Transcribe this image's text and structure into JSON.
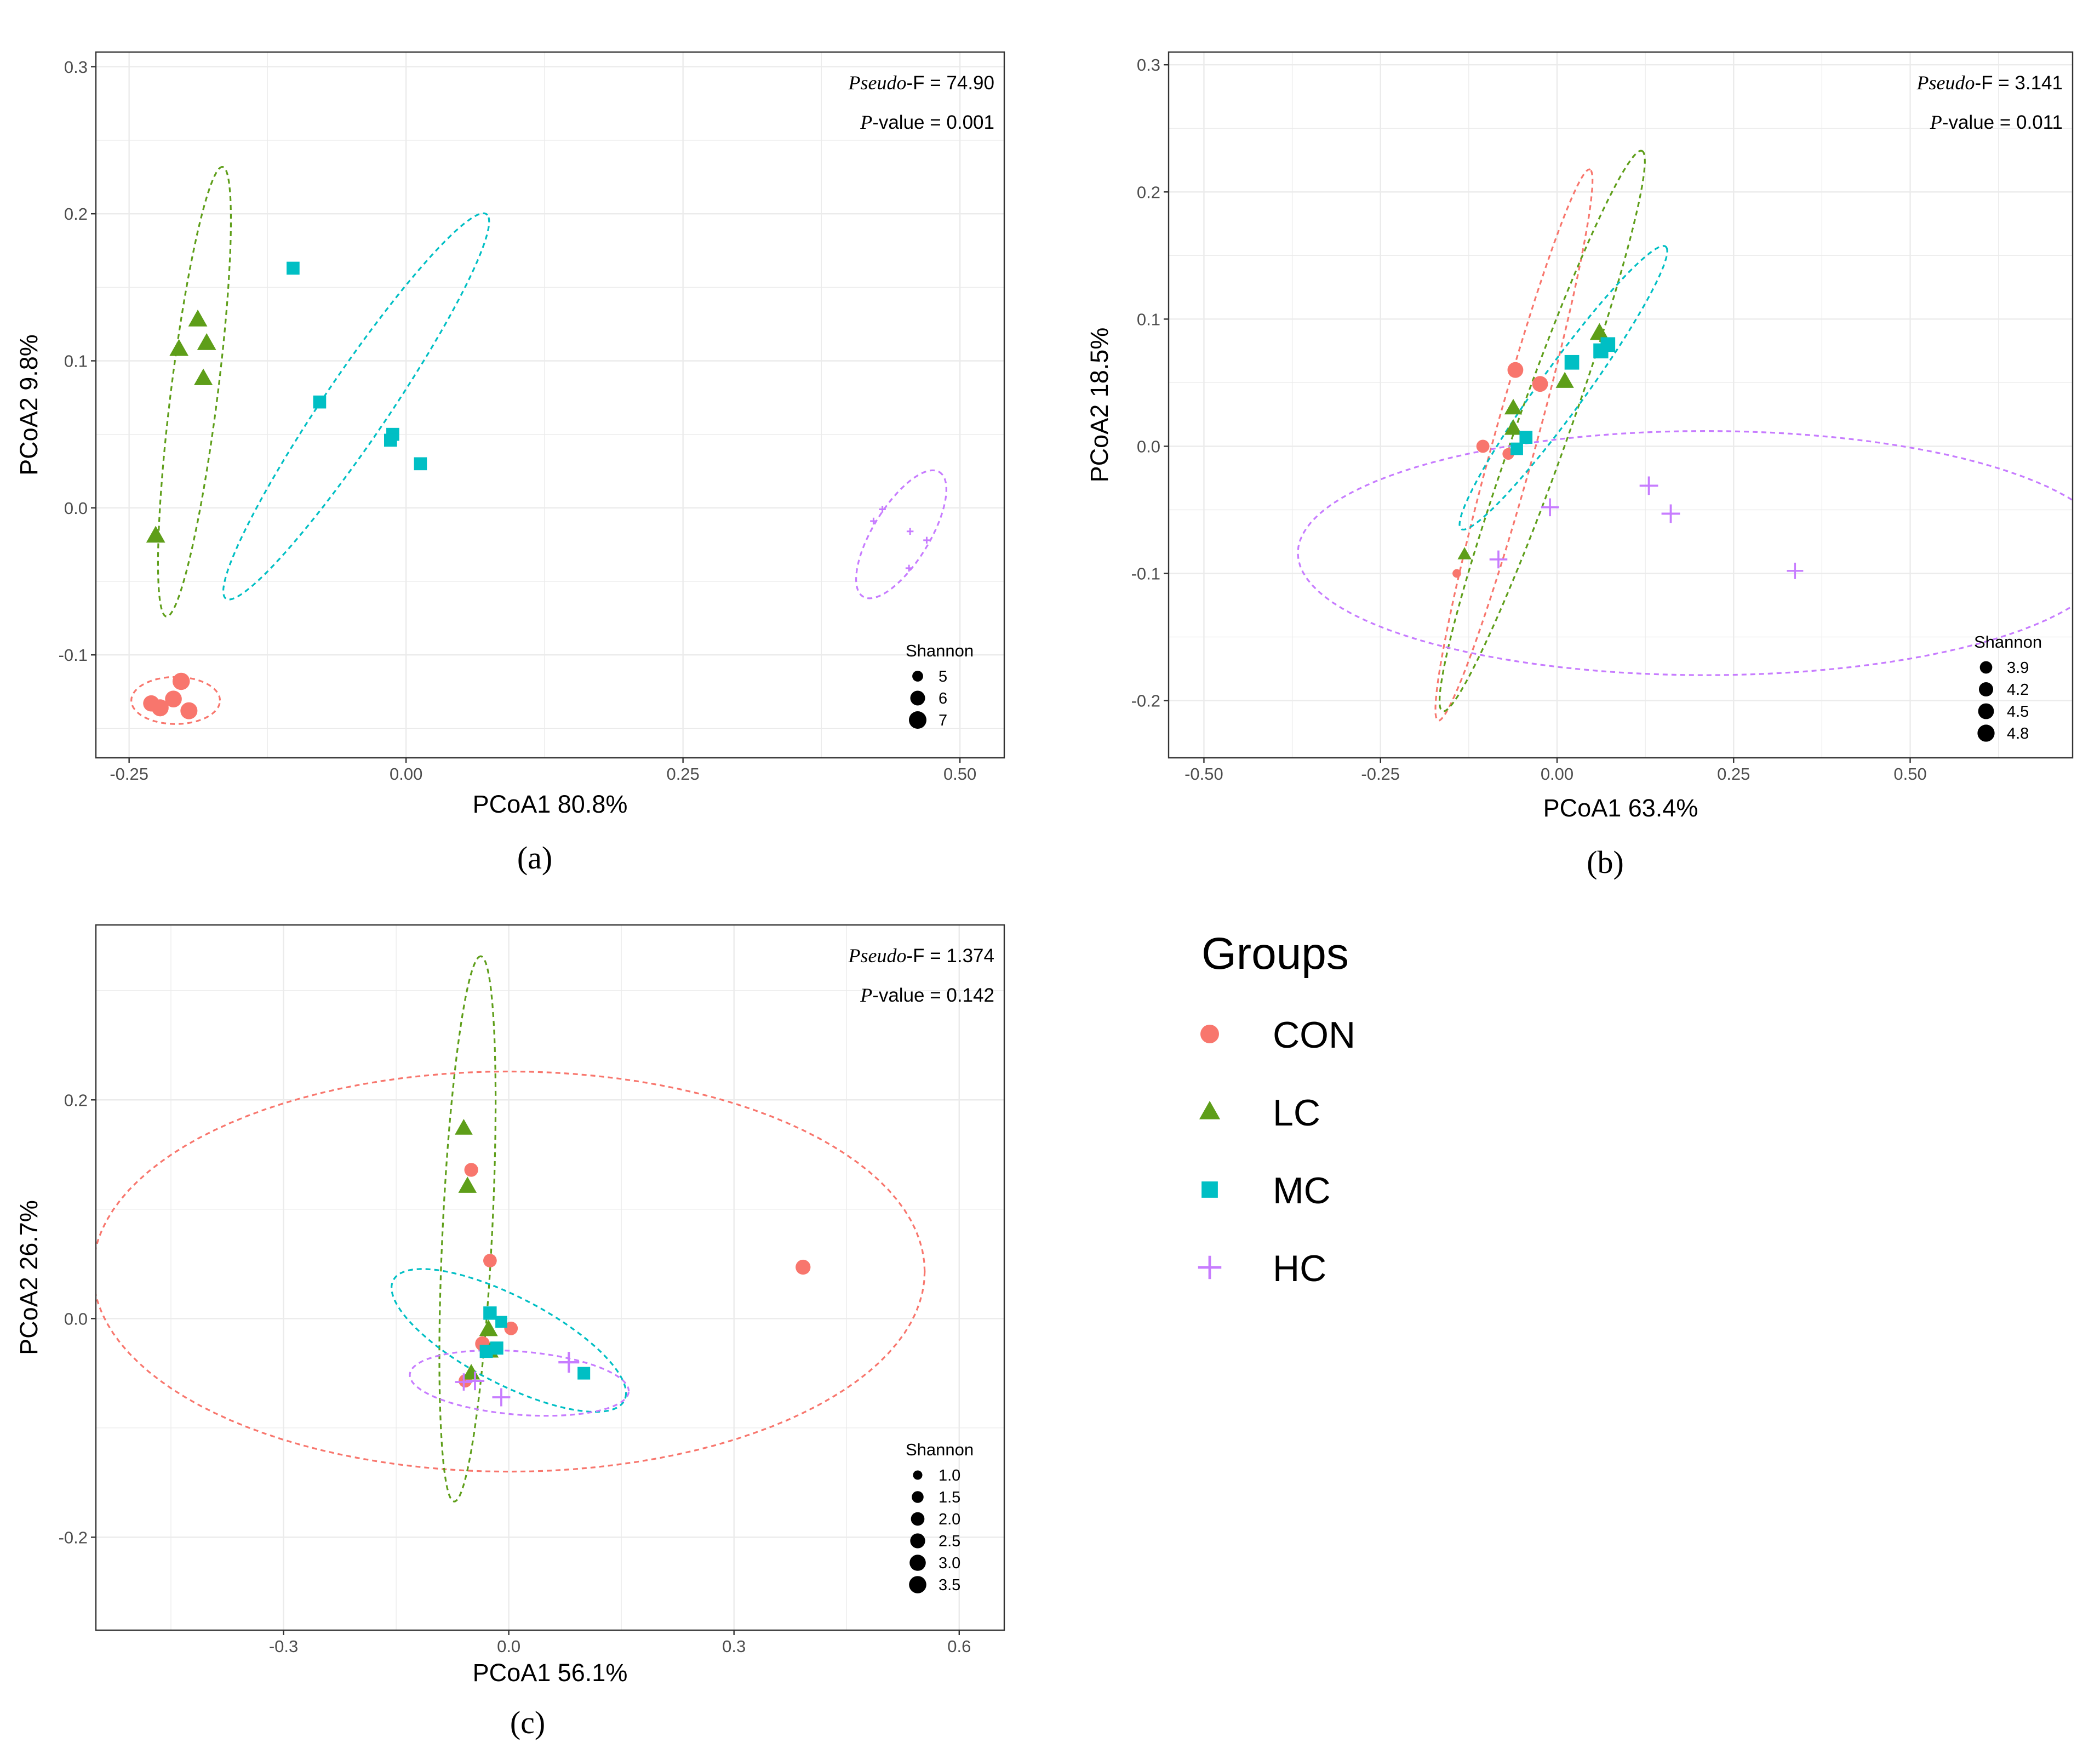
{
  "colors": {
    "CON": "#F8766D",
    "LC": "#5E9E19",
    "MC": "#00BFC4",
    "HC": "#C77CFF"
  },
  "legend": {
    "title": "Groups",
    "items": [
      {
        "key": "CON",
        "label": "CON",
        "shape": "circle"
      },
      {
        "key": "LC",
        "label": "LC",
        "shape": "triangle"
      },
      {
        "key": "MC",
        "label": "MC",
        "shape": "square"
      },
      {
        "key": "HC",
        "label": "HC",
        "shape": "plus"
      }
    ]
  },
  "chart_data": [
    {
      "type": "scatter",
      "panel_label": "(a)",
      "xlabel": "PCoA1  80.8%",
      "ylabel": "PCoA2  9.8%",
      "xlim": [
        -0.28,
        0.54
      ],
      "ylim": [
        -0.17,
        0.31
      ],
      "xticks": [
        -0.25,
        0.0,
        0.25,
        0.5
      ],
      "xtick_labels": [
        "-0.25",
        "0.00",
        "0.25",
        "0.50"
      ],
      "yticks": [
        -0.1,
        0.0,
        0.1,
        0.2,
        0.3
      ],
      "ytick_labels": [
        "-0.1",
        "0.0",
        "0.1",
        "0.2",
        "0.3"
      ],
      "stat_f_prefix": "Pseudo",
      "stat_f_suffix": "-F = 74.90",
      "stat_p_prefix": "P",
      "stat_p_suffix": "-value = 0.001",
      "grid": true,
      "legend_position": "bottom-right",
      "size_legend": {
        "title": "Shannon",
        "levels": [
          [
            "5",
            5
          ],
          [
            "6",
            6
          ],
          [
            "7",
            7
          ]
        ],
        "min": 4.5,
        "max": 7
      },
      "series": [
        {
          "group": "CON",
          "points": [
            [
              -0.23,
              -0.133,
              6.5
            ],
            [
              -0.222,
              -0.136,
              6.8
            ],
            [
              -0.21,
              -0.13,
              6.7
            ],
            [
              -0.203,
              -0.118,
              6.9
            ],
            [
              -0.196,
              -0.138,
              6.8
            ]
          ]
        },
        {
          "group": "LC",
          "points": [
            [
              -0.188,
              0.128,
              6.8
            ],
            [
              -0.205,
              0.108,
              6.8
            ],
            [
              -0.18,
              0.112,
              6.8
            ],
            [
              -0.183,
              0.088,
              6.7
            ],
            [
              -0.226,
              -0.019,
              6.8
            ]
          ]
        },
        {
          "group": "MC",
          "points": [
            [
              -0.102,
              0.163,
              6.0
            ],
            [
              -0.078,
              0.072,
              6.0
            ],
            [
              -0.012,
              0.05,
              6.0
            ],
            [
              -0.014,
              0.046,
              6.0
            ],
            [
              0.013,
              0.03,
              6.0
            ]
          ]
        },
        {
          "group": "HC",
          "points": [
            [
              0.43,
              -0.001,
              4.5
            ],
            [
              0.422,
              -0.009,
              4.5
            ],
            [
              0.455,
              -0.016,
              4.5
            ],
            [
              0.47,
              -0.022,
              4.5
            ],
            [
              0.454,
              -0.041,
              4.5
            ]
          ]
        }
      ],
      "ellipses": [
        {
          "group": "CON",
          "cx": -0.208,
          "cy": -0.131,
          "rx": 0.04,
          "ry": 0.016,
          "angle": 0
        },
        {
          "group": "LC",
          "cx": -0.191,
          "cy": 0.079,
          "rx": 0.155,
          "ry": 0.021,
          "angle": 80.5
        },
        {
          "group": "MC",
          "cx": -0.045,
          "cy": 0.069,
          "rx": 0.176,
          "ry": 0.026,
          "angle": 47.7
        },
        {
          "group": "HC",
          "cx": 0.447,
          "cy": -0.018,
          "rx": 0.055,
          "ry": 0.023,
          "angle": 47.7
        }
      ]
    },
    {
      "type": "scatter",
      "panel_label": "(b)",
      "xlabel": "PCoA1  63.4%",
      "ylabel": "PCoA2  18.5%",
      "xlim": [
        -0.55,
        0.73
      ],
      "ylim": [
        -0.245,
        0.31
      ],
      "xticks": [
        -0.5,
        -0.25,
        0.0,
        0.25,
        0.5
      ],
      "xtick_labels": [
        "-0.50",
        "-0.25",
        "0.00",
        "0.25",
        "0.50"
      ],
      "yticks": [
        -0.2,
        -0.1,
        0.0,
        0.1,
        0.2,
        0.3
      ],
      "ytick_labels": [
        "-0.2",
        "-0.1",
        "0.0",
        "0.1",
        "0.2",
        "0.3"
      ],
      "stat_f_prefix": "Pseudo",
      "stat_f_suffix": "-F = 3.141",
      "stat_p_prefix": "P",
      "stat_p_suffix": "-value = 0.011",
      "grid": true,
      "legend_position": "bottom-right",
      "size_legend": {
        "title": "Shannon",
        "levels": [
          [
            "3.9",
            3.9
          ],
          [
            "4.2",
            4.2
          ],
          [
            "4.5",
            4.5
          ],
          [
            "4.8",
            4.8
          ]
        ],
        "min": 3.4,
        "max": 4.9
      },
      "series": [
        {
          "group": "CON",
          "points": [
            [
              -0.059,
              0.06,
              4.5
            ],
            [
              -0.024,
              0.049,
              4.5
            ],
            [
              -0.105,
              0.0,
              4.0
            ],
            [
              -0.069,
              -0.006,
              3.8
            ],
            [
              -0.142,
              -0.1,
              3.5
            ]
          ]
        },
        {
          "group": "LC",
          "points": [
            [
              0.06,
              0.089,
              4.8
            ],
            [
              0.011,
              0.051,
              4.6
            ],
            [
              -0.062,
              0.03,
              4.5
            ],
            [
              -0.062,
              0.014,
              4.5
            ],
            [
              -0.131,
              -0.085,
              3.9
            ]
          ]
        },
        {
          "group": "MC",
          "points": [
            [
              0.021,
              0.066,
              4.7
            ],
            [
              0.072,
              0.08,
              4.7
            ],
            [
              0.062,
              0.075,
              4.8
            ],
            [
              -0.044,
              0.007,
              4.3
            ],
            [
              -0.057,
              -0.002,
              4.2
            ]
          ]
        },
        {
          "group": "HC",
          "points": [
            [
              0.13,
              -0.031,
              4.3
            ],
            [
              0.161,
              -0.053,
              4.3
            ],
            [
              -0.01,
              -0.048,
              4.2
            ],
            [
              -0.083,
              -0.089,
              4.2
            ],
            [
              0.337,
              -0.098,
              4.0
            ]
          ]
        }
      ],
      "ellipses": [
        {
          "group": "CON",
          "cx": -0.061,
          "cy": 0.001,
          "rx": 0.242,
          "ry": 0.028,
          "angle": 63.4
        },
        {
          "group": "LC",
          "cx": -0.021,
          "cy": 0.012,
          "rx": 0.262,
          "ry": 0.033,
          "angle": 57
        },
        {
          "group": "MC",
          "cx": 0.009,
          "cy": 0.046,
          "rx": 0.183,
          "ry": 0.024,
          "angle": 36.9
        },
        {
          "group": "HC",
          "cx": 0.21,
          "cy": -0.084,
          "rx": 0.577,
          "ry": 0.096,
          "angle": 0
        }
      ]
    },
    {
      "type": "scatter",
      "panel_label": "(c)",
      "xlabel": "PCoA1  56.1%",
      "ylabel": "PCoA2  26.7%",
      "xlim": [
        -0.55,
        0.66
      ],
      "ylim": [
        -0.285,
        0.36
      ],
      "xticks": [
        -0.3,
        0.0,
        0.3,
        0.6
      ],
      "xtick_labels": [
        "-0.3",
        "0.0",
        "0.3",
        "0.6"
      ],
      "yticks": [
        -0.2,
        0.0,
        0.2
      ],
      "ytick_labels": [
        "-0.2",
        "0.0",
        "0.2"
      ],
      "stat_f_prefix": "Pseudo",
      "stat_f_suffix": "-F = 1.374",
      "stat_p_prefix": "P",
      "stat_p_suffix": "-value = 0.142",
      "grid": true,
      "legend_position": "bottom-right",
      "size_legend": {
        "title": "Shannon",
        "levels": [
          [
            "1.0",
            1.0
          ],
          [
            "1.5",
            1.5
          ],
          [
            "2.0",
            2.0
          ],
          [
            "2.5",
            2.5
          ],
          [
            "3.0",
            3.0
          ],
          [
            "3.5",
            3.5
          ]
        ],
        "min": 0.7,
        "max": 3.6
      },
      "series": [
        {
          "group": "CON",
          "points": [
            [
              -0.05,
              0.136,
              2.1
            ],
            [
              -0.025,
              0.053,
              2.0
            ],
            [
              0.392,
              0.047,
              2.5
            ],
            [
              -0.035,
              -0.023,
              2.4
            ],
            [
              0.003,
              -0.009,
              2.0
            ],
            [
              -0.058,
              -0.057,
              1.9
            ]
          ]
        },
        {
          "group": "LC",
          "points": [
            [
              -0.06,
              0.174,
              2.9
            ],
            [
              -0.055,
              0.121,
              3.1
            ],
            [
              -0.027,
              -0.01,
              3.2
            ],
            [
              -0.025,
              -0.03,
              2.7
            ],
            [
              -0.05,
              -0.05,
              2.8
            ]
          ]
        },
        {
          "group": "MC",
          "points": [
            [
              -0.025,
              0.005,
              2.6
            ],
            [
              -0.01,
              -0.003,
              2.0
            ],
            [
              -0.016,
              -0.027,
              2.5
            ],
            [
              -0.03,
              -0.03,
              2.5
            ],
            [
              0.1,
              -0.05,
              2.3
            ]
          ]
        },
        {
          "group": "HC",
          "points": [
            [
              0.08,
              -0.04,
              3.2
            ],
            [
              -0.06,
              -0.058,
              2.1
            ],
            [
              -0.045,
              -0.057,
              2.5
            ],
            [
              -0.01,
              -0.072,
              2.3
            ]
          ]
        }
      ],
      "ellipses": [
        {
          "group": "CON",
          "cx": 0.0,
          "cy": 0.043,
          "rx": 0.554,
          "ry": 0.183,
          "angle": 0
        },
        {
          "group": "LC",
          "cx": -0.055,
          "cy": 0.082,
          "rx": 0.25,
          "ry": 0.033,
          "angle": 85.9
        },
        {
          "group": "MC",
          "cx": 0.0,
          "cy": -0.02,
          "rx": 0.164,
          "ry": 0.042,
          "angle": -18.4
        },
        {
          "group": "HC",
          "cx": 0.014,
          "cy": -0.059,
          "rx": 0.146,
          "ry": 0.029,
          "angle": -3
        }
      ]
    }
  ]
}
